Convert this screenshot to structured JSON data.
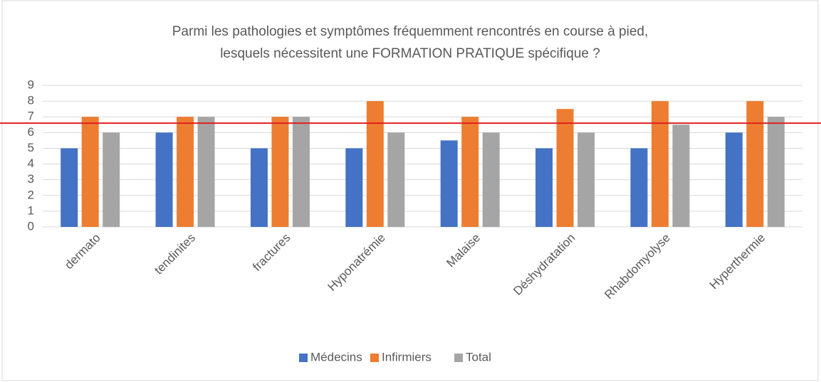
{
  "chart_data": {
    "type": "bar",
    "title": [
      "Parmi les pathologies et symptômes fréquemment rencontrés en course à pied,",
      "lesquels nécessitent une FORMATION PRATIQUE spécifique ?"
    ],
    "categories": [
      "dermato",
      "tendinites",
      "fractures",
      "Hyponatrémie",
      "Malaise",
      "Déshydratation",
      "Rhabdomyolyse",
      "Hyperthermie"
    ],
    "series": [
      {
        "name": "Médecins",
        "color": "#4472c4",
        "values": [
          5,
          6,
          5,
          5,
          5.5,
          5,
          5,
          6
        ]
      },
      {
        "name": "Infirmiers",
        "color": "#ed7d31",
        "values": [
          7,
          7,
          7,
          8,
          7,
          7.5,
          8,
          8
        ]
      },
      {
        "name": "Total",
        "color": "#a5a5a5",
        "values": [
          6,
          7,
          7,
          6,
          6,
          6,
          6.5,
          7
        ]
      }
    ],
    "ylim": [
      0,
      9
    ],
    "yticks": [
      0,
      1,
      2,
      3,
      4,
      5,
      6,
      7,
      8,
      9
    ],
    "grid": true,
    "legend": "bottom",
    "reference_line": {
      "value": 6.6,
      "color": "#e02020"
    }
  }
}
